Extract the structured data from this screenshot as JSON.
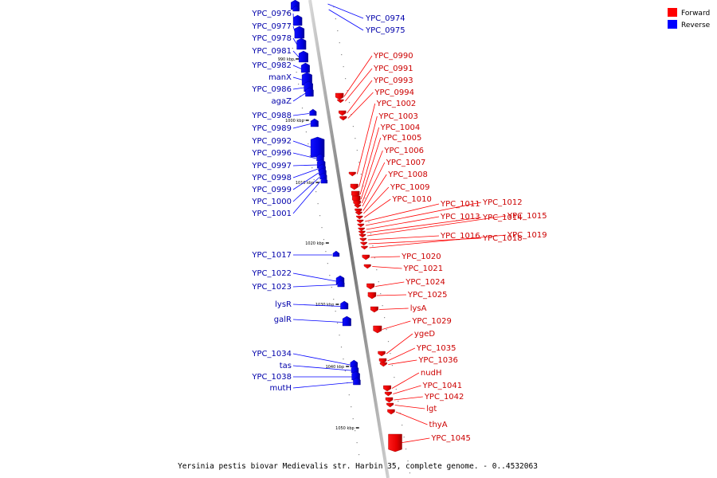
{
  "caption": "Yersinia pestis biovar Medievalis str. Harbin 35, complete genome. - 0..4532063",
  "legend": [
    {
      "label": "Forward",
      "color": "#ff0000"
    },
    {
      "label": "Reverse",
      "color": "#0000ff"
    }
  ],
  "ticks": [
    "990 kbp",
    "1000 kbp",
    "1010 kbp",
    "1020 kbp",
    "1030 kbp",
    "1040 kbp",
    "1050 kbp"
  ],
  "reverse_genes": [
    "YPC_0976",
    "YPC_0977",
    "YPC_0978",
    "YPC_0981",
    "YPC_0982",
    "manX",
    "YPC_0986",
    "agaZ",
    "YPC_0988",
    "YPC_0989",
    "YPC_0992",
    "YPC_0996",
    "YPC_0997",
    "YPC_0998",
    "YPC_0999",
    "YPC_1000",
    "YPC_1001",
    "YPC_1017",
    "YPC_1022",
    "YPC_1023",
    "lysR",
    "galR",
    "YPC_1034",
    "tas",
    "YPC_1038",
    "mutH",
    "YPC_0974",
    "YPC_0975"
  ],
  "forward_genes": [
    "YPC_0990",
    "YPC_0991",
    "YPC_0993",
    "YPC_0994",
    "YPC_1002",
    "YPC_1003",
    "YPC_1004",
    "YPC_1005",
    "YPC_1006",
    "YPC_1007",
    "YPC_1008",
    "YPC_1009",
    "YPC_1010",
    "YPC_1011",
    "YPC_1012",
    "YPC_1013",
    "YPC_1014",
    "YPC_1015",
    "YPC_1016",
    "YPC_1018",
    "YPC_1019",
    "YPC_1020",
    "YPC_1021",
    "YPC_1024",
    "YPC_1025",
    "lysA",
    "YPC_1029",
    "ygeD",
    "YPC_1035",
    "YPC_1036",
    "nudH",
    "YPC_1041",
    "YPC_1042",
    "lgt",
    "thyA",
    "YPC_1045"
  ]
}
